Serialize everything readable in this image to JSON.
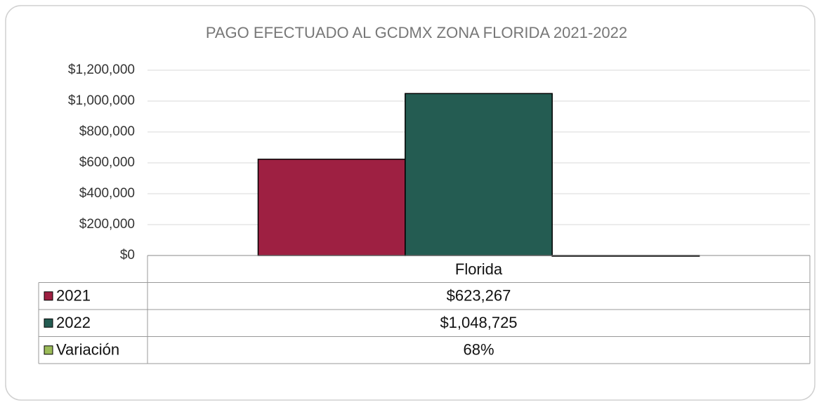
{
  "chart_data": {
    "type": "bar",
    "title": "PAGO EFECTUADO AL GCDMX ZONA FLORIDA 2021-2022",
    "categories": [
      "Florida"
    ],
    "series": [
      {
        "name": "2021",
        "color": "#9e2042",
        "values": [
          623267
        ],
        "value_labels": [
          "$623,267"
        ]
      },
      {
        "name": "2022",
        "color": "#245c52",
        "values": [
          1048725
        ],
        "value_labels": [
          "$1,048,725"
        ]
      },
      {
        "name": "Variación",
        "color": "#9bbb59",
        "values": [
          68
        ],
        "value_labels": [
          "68%"
        ]
      }
    ],
    "ylim": [
      0,
      1200000
    ],
    "yticks": [
      {
        "value": 0,
        "label": "$0"
      },
      {
        "value": 200000,
        "label": "$200,000"
      },
      {
        "value": 400000,
        "label": "$400,000"
      },
      {
        "value": 600000,
        "label": "$600,000"
      },
      {
        "value": 800000,
        "label": "$800,000"
      },
      {
        "value": 1000000,
        "label": "$1,000,000"
      },
      {
        "value": 1200000,
        "label": "$1,200,000"
      }
    ],
    "grid": true
  }
}
